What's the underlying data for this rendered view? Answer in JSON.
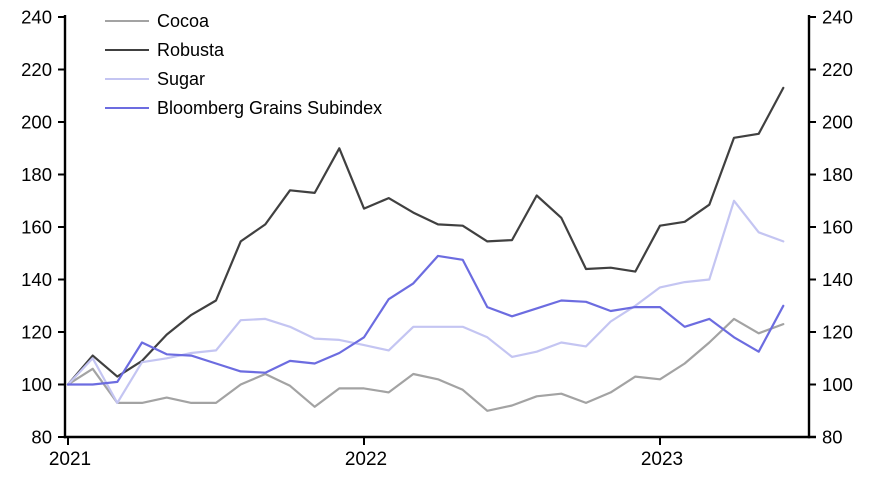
{
  "chart_data": {
    "type": "line",
    "title": "",
    "xlabel": "",
    "ylabel": "",
    "index_note": "all series start at 100",
    "ylim": [
      80,
      240
    ],
    "y_tick_step": 20,
    "y_ticks": [
      80,
      100,
      120,
      140,
      160,
      180,
      200,
      220,
      240
    ],
    "y_axis_sides": [
      "left",
      "right"
    ],
    "grid": "off",
    "legend_position": "top-left-inside",
    "x_tick_labels": [
      "2021",
      "2022",
      "2023"
    ],
    "x_tick_month_index": [
      0,
      12,
      24
    ],
    "x_months": [
      "2021-01",
      "2021-02",
      "2021-03",
      "2021-04",
      "2021-05",
      "2021-06",
      "2021-07",
      "2021-08",
      "2021-09",
      "2021-10",
      "2021-11",
      "2021-12",
      "2022-01",
      "2022-02",
      "2022-03",
      "2022-04",
      "2022-05",
      "2022-06",
      "2022-07",
      "2022-08",
      "2022-09",
      "2022-10",
      "2022-11",
      "2022-12",
      "2023-01",
      "2023-02",
      "2023-03",
      "2023-04",
      "2023-05",
      "2023-06"
    ],
    "series": [
      {
        "name": "Cocoa",
        "color": "#a3a3a3",
        "values": [
          100,
          106,
          93,
          93,
          95,
          93,
          93,
          100,
          104,
          99.5,
          91.5,
          98.5,
          98.5,
          97,
          104,
          102,
          98,
          90,
          92,
          95.5,
          96.5,
          93,
          97,
          103,
          102,
          108,
          116,
          125,
          119.5,
          123
        ]
      },
      {
        "name": "Robusta",
        "color": "#404040",
        "values": [
          100,
          111,
          103,
          109,
          119,
          126.5,
          132,
          154.5,
          161,
          174,
          173,
          190,
          167,
          171,
          165.5,
          161,
          160.5,
          154.5,
          155,
          172,
          163.5,
          144,
          144.5,
          143,
          160.5,
          162,
          168.5,
          194,
          195.5,
          213
        ]
      },
      {
        "name": "Sugar",
        "color": "#c4c5f2",
        "values": [
          100,
          110,
          93,
          108.5,
          110,
          112,
          113,
          124.5,
          125,
          122,
          117.5,
          117,
          115,
          113,
          122,
          122,
          122,
          118,
          110.5,
          112.5,
          116,
          114.5,
          124,
          130,
          137,
          139,
          140,
          170,
          158,
          154.5
        ]
      },
      {
        "name": "Bloomberg Grains Subindex",
        "color": "#6c6ce0",
        "values": [
          100,
          100,
          101,
          116,
          111.5,
          111,
          108,
          105,
          104.5,
          109,
          108,
          112,
          118,
          132.5,
          138.5,
          149,
          147.5,
          129.5,
          126,
          129,
          132,
          131.5,
          128,
          129.5,
          129.5,
          122,
          125,
          118,
          112.5,
          130
        ]
      }
    ],
    "axis_color": "#000000",
    "line_width": 2.2
  }
}
